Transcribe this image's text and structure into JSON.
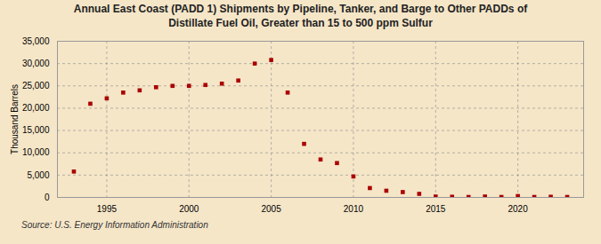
{
  "chart_data": {
    "type": "scatter",
    "title": "Annual East Coast (PADD 1) Shipments by Pipeline, Tanker, and Barge to Other PADDs of\nDistillate Fuel Oil, Greater than 15 to 500 ppm Sulfur",
    "ylabel": "Thousand Barrels",
    "source": "Source: U.S. Energy Information Administration",
    "x": [
      1993,
      1994,
      1995,
      1996,
      1997,
      1998,
      1999,
      2000,
      2001,
      2002,
      2003,
      2004,
      2005,
      2006,
      2007,
      2008,
      2009,
      2010,
      2011,
      2012,
      2013,
      2014,
      2015,
      2016,
      2017,
      2018,
      2019,
      2020,
      2021,
      2022,
      2023
    ],
    "values": [
      5800,
      21000,
      22200,
      23500,
      24000,
      24700,
      25000,
      25000,
      25200,
      25500,
      26200,
      30000,
      30800,
      23500,
      12000,
      8500,
      7700,
      4700,
      2100,
      1500,
      1200,
      800,
      200,
      150,
      100,
      200,
      100,
      300,
      100,
      150,
      100
    ],
    "color": "#aa0000",
    "marker": "square",
    "xlim": [
      1992,
      2024
    ],
    "xticks": [
      1995,
      2000,
      2005,
      2010,
      2015,
      2020
    ],
    "ylim": [
      0,
      35000
    ],
    "yticks": [
      0,
      {
        "value": 5000,
        "label": "5,000"
      },
      {
        "value": 10000,
        "label": "10,000"
      },
      {
        "value": 15000,
        "label": "15,000"
      },
      {
        "value": 20000,
        "label": "20,000"
      },
      {
        "value": 25000,
        "label": "25,000"
      },
      {
        "value": 30000,
        "label": "30,000"
      },
      {
        "value": 35000,
        "label": "35,000"
      }
    ],
    "grid": true
  }
}
